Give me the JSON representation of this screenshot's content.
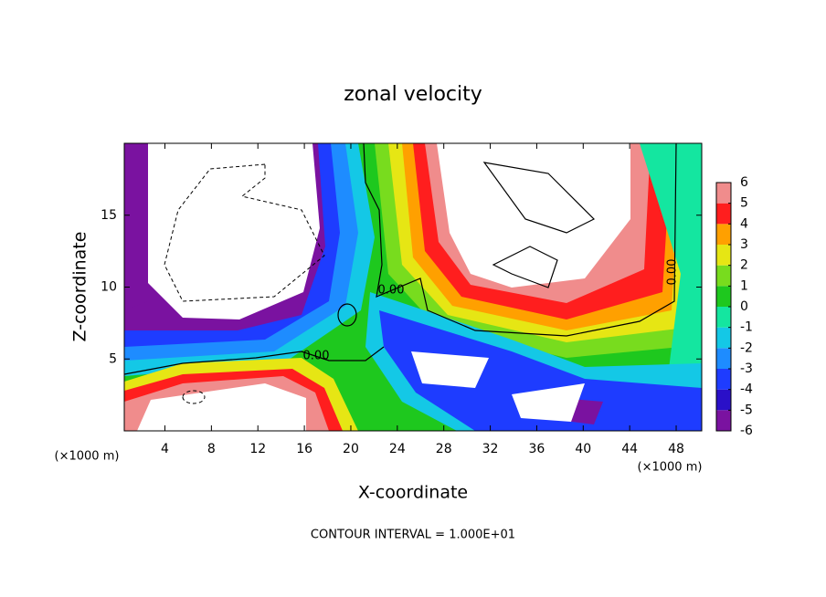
{
  "chart_data": {
    "type": "contour",
    "title": "zonal velocity",
    "xlabel": "X-coordinate",
    "ylabel": "Z-coordinate",
    "y_unit_label": "(×1000 m)",
    "x_unit_label": "(×1000 m)",
    "footer": "CONTOUR INTERVAL = 1.000E+01",
    "xlim": [
      0.5,
      50.2
    ],
    "ylim": [
      0,
      20
    ],
    "xticks": [
      4,
      8,
      12,
      16,
      20,
      24,
      28,
      32,
      36,
      40,
      44,
      48
    ],
    "yticks": [
      5,
      10,
      15
    ],
    "colorbar": {
      "lim": [
        -6,
        6
      ],
      "ticks": [
        6,
        5,
        4,
        3,
        2,
        1,
        0,
        -1,
        -2,
        -3,
        -4,
        -5,
        -6
      ],
      "colors": [
        "#7a12a0",
        "#2a10c8",
        "#1e3cff",
        "#1e8cff",
        "#14c8e6",
        "#14e6a0",
        "#1ec81e",
        "#78dc1e",
        "#e6e614",
        "#ffa000",
        "#ff1e1e",
        "#f08c8c"
      ]
    },
    "contour_labels": [
      "0.00",
      "0.00",
      "0.00"
    ]
  }
}
